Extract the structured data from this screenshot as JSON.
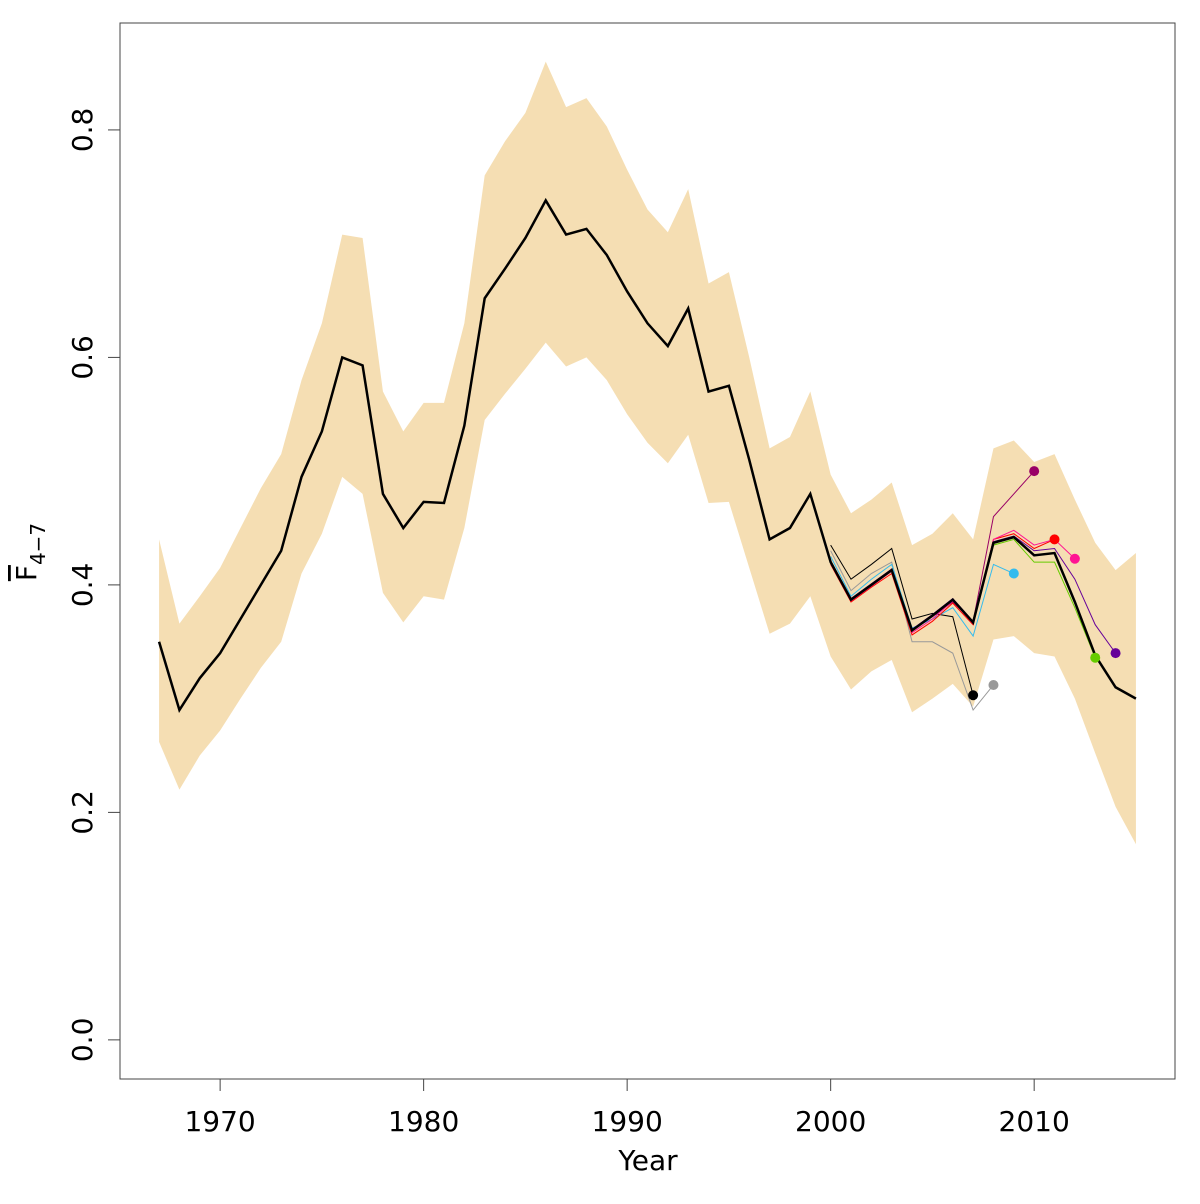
{
  "chart_data": {
    "type": "line",
    "x_label": "Year",
    "y_label": "F",
    "y_label_subscript": "4−7",
    "xlim": [
      1965.08,
      2016.92
    ],
    "ylim": [
      -0.0344,
      0.894
    ],
    "xticks": [
      1970,
      1980,
      1990,
      2000,
      2010
    ],
    "yticks": [
      {
        "value": 0,
        "label": "0.0"
      },
      0.2,
      0.4,
      0.6,
      0.8
    ],
    "x": [
      1967,
      1968,
      1969,
      1970,
      1971,
      1972,
      1973,
      1974,
      1975,
      1976,
      1977,
      1978,
      1979,
      1980,
      1981,
      1982,
      1983,
      1984,
      1985,
      1986,
      1987,
      1988,
      1989,
      1990,
      1991,
      1992,
      1993,
      1994,
      1995,
      1996,
      1997,
      1998,
      1999,
      2000,
      2001,
      2002,
      2003,
      2004,
      2005,
      2006,
      2007,
      2008,
      2009,
      2010,
      2011,
      2012,
      2013,
      2014,
      2015
    ],
    "band": {
      "color": "#f5deb3",
      "upper": [
        0.44,
        0.366,
        0.39,
        0.415,
        0.45,
        0.485,
        0.515,
        0.58,
        0.63,
        0.708,
        0.705,
        0.57,
        0.535,
        0.56,
        0.56,
        0.63,
        0.76,
        0.79,
        0.815,
        0.86,
        0.82,
        0.828,
        0.803,
        0.765,
        0.73,
        0.71,
        0.748,
        0.665,
        0.675,
        0.6,
        0.52,
        0.53,
        0.57,
        0.497,
        0.463,
        0.475,
        0.49,
        0.435,
        0.445,
        0.463,
        0.44,
        0.52,
        0.527,
        0.508,
        0.515,
        0.475,
        0.437,
        0.413,
        0.428
      ],
      "lower": [
        0.262,
        0.22,
        0.25,
        0.272,
        0.3,
        0.327,
        0.35,
        0.41,
        0.445,
        0.495,
        0.48,
        0.393,
        0.367,
        0.39,
        0.387,
        0.45,
        0.545,
        0.568,
        0.59,
        0.613,
        0.592,
        0.6,
        0.58,
        0.55,
        0.525,
        0.507,
        0.532,
        0.472,
        0.473,
        0.415,
        0.357,
        0.366,
        0.39,
        0.337,
        0.308,
        0.324,
        0.334,
        0.288,
        0.3,
        0.313,
        0.293,
        0.352,
        0.355,
        0.34,
        0.337,
        0.3,
        0.252,
        0.205,
        0.172
      ]
    },
    "color": "#000000",
    "values": [
      0.35,
      0.29,
      0.318,
      0.34,
      0.37,
      0.4,
      0.43,
      0.495,
      0.535,
      0.6,
      0.593,
      0.48,
      0.45,
      0.473,
      0.472,
      0.54,
      0.652,
      0.678,
      0.705,
      0.738,
      0.708,
      0.713,
      0.69,
      0.658,
      0.63,
      0.61,
      0.643,
      0.57,
      0.575,
      0.51,
      0.44,
      0.45,
      0.48,
      0.42,
      0.387,
      0.4,
      0.413,
      0.36,
      0.373,
      0.387,
      0.367,
      0.437,
      0.442,
      0.426,
      0.428,
      0.385,
      0.338,
      0.31,
      0.3
    ],
    "series": [
      {
        "color": "#000000",
        "x": [
          2000,
          2001,
          2002,
          2003,
          2004,
          2005,
          2006,
          2007
        ],
        "values": [
          0.435,
          0.405,
          0.418,
          0.432,
          0.37,
          0.375,
          0.372,
          0.303
        ]
      },
      {
        "color": "#999999",
        "x": [
          2000,
          2001,
          2002,
          2003,
          2004,
          2005,
          2006,
          2007,
          2008
        ],
        "values": [
          0.43,
          0.395,
          0.41,
          0.42,
          0.35,
          0.35,
          0.34,
          0.29,
          0.312
        ]
      },
      {
        "color": "#33bbee",
        "x": [
          2000,
          2001,
          2002,
          2003,
          2004,
          2005,
          2006,
          2007,
          2008,
          2009
        ],
        "values": [
          0.425,
          0.39,
          0.405,
          0.418,
          0.362,
          0.37,
          0.38,
          0.355,
          0.418,
          0.41
        ]
      },
      {
        "color": "#990066",
        "x": [
          2000,
          2001,
          2002,
          2003,
          2004,
          2005,
          2006,
          2007,
          2008,
          2009,
          2010
        ],
        "values": [
          0.42,
          0.387,
          0.4,
          0.413,
          0.36,
          0.372,
          0.385,
          0.368,
          0.46,
          0.48,
          0.5
        ]
      },
      {
        "color": "#ff0000",
        "x": [
          2000,
          2001,
          2002,
          2003,
          2004,
          2005,
          2006,
          2007,
          2008,
          2009,
          2010,
          2011
        ],
        "values": [
          0.418,
          0.385,
          0.398,
          0.41,
          0.356,
          0.368,
          0.384,
          0.365,
          0.44,
          0.445,
          0.432,
          0.44
        ]
      },
      {
        "color": "#ff1493",
        "x": [
          2000,
          2001,
          2002,
          2003,
          2004,
          2005,
          2006,
          2007,
          2008,
          2009,
          2010,
          2011,
          2012
        ],
        "values": [
          0.419,
          0.386,
          0.399,
          0.412,
          0.358,
          0.37,
          0.386,
          0.366,
          0.44,
          0.448,
          0.435,
          0.44,
          0.423
        ]
      },
      {
        "color": "#66cc00",
        "x": [
          2000,
          2001,
          2002,
          2003,
          2004,
          2005,
          2006,
          2007,
          2008,
          2009,
          2010,
          2011,
          2012,
          2013
        ],
        "values": [
          0.42,
          0.387,
          0.4,
          0.413,
          0.36,
          0.373,
          0.387,
          0.367,
          0.435,
          0.44,
          0.42,
          0.42,
          0.38,
          0.336
        ]
      },
      {
        "color": "#660099",
        "x": [
          2000,
          2001,
          2002,
          2003,
          2004,
          2005,
          2006,
          2007,
          2008,
          2009,
          2010,
          2011,
          2012,
          2013,
          2014
        ],
        "values": [
          0.421,
          0.388,
          0.401,
          0.414,
          0.361,
          0.374,
          0.388,
          0.368,
          0.438,
          0.443,
          0.43,
          0.432,
          0.405,
          0.365,
          0.34
        ]
      }
    ]
  }
}
